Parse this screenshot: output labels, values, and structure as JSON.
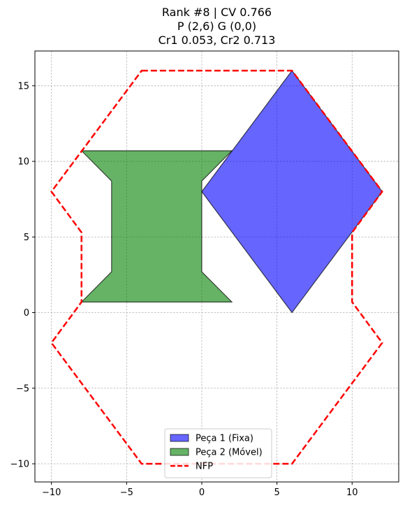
{
  "chart_data": {
    "type": "polygon",
    "title": [
      "Rank #8 | CV 0.766",
      "P (2,6) G (0,0)",
      "Cr1 0.053, Cr2 0.713"
    ],
    "xlabel": "",
    "ylabel": "",
    "xlim": [
      -11.1,
      13.1
    ],
    "ylim": [
      -11.2,
      17.3
    ],
    "xticks": [
      -10,
      -5,
      0,
      5,
      10
    ],
    "yticks": [
      -10,
      -5,
      0,
      5,
      10,
      15
    ],
    "grid": true,
    "legend_position": "bottom-center",
    "series": [
      {
        "name": "Peça 1 (Fixa)",
        "kind": "filled",
        "color": "#0000ff",
        "points": [
          [
            6,
            0
          ],
          [
            12,
            8
          ],
          [
            6,
            16
          ],
          [
            0,
            8
          ]
        ]
      },
      {
        "name": "Peça 2 (Móvel)",
        "kind": "filled",
        "color": "#008000",
        "points": [
          [
            -8,
            0.7
          ],
          [
            2,
            0.7
          ],
          [
            0,
            2.7
          ],
          [
            0,
            8.7
          ],
          [
            2,
            10.7
          ],
          [
            -8,
            10.7
          ],
          [
            -6,
            8.7
          ],
          [
            -6,
            2.7
          ]
        ]
      },
      {
        "name": "NFP",
        "kind": "dashed",
        "color": "#ff0000",
        "points": [
          [
            -4,
            16
          ],
          [
            6,
            16
          ],
          [
            12,
            8
          ],
          [
            10,
            5.3
          ],
          [
            10,
            0.7
          ],
          [
            12,
            -2
          ],
          [
            6,
            -10
          ],
          [
            -4,
            -10
          ],
          [
            -10,
            -2
          ],
          [
            -8,
            0.7
          ],
          [
            -8,
            5.3
          ],
          [
            -10,
            8
          ]
        ]
      }
    ]
  }
}
